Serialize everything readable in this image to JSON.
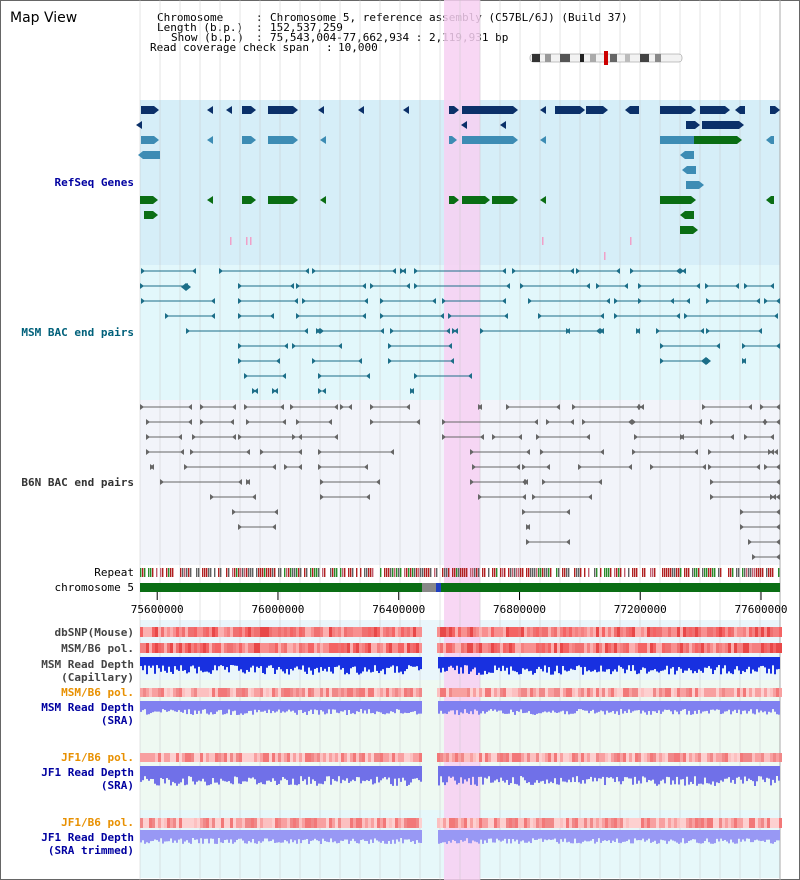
{
  "title": "Map View",
  "info": {
    "chromosome_key": "Chromosome",
    "chromosome_value": "Chromosome 5, reference assembly (C57BL/6J) (Build 37)",
    "length_key": "Length (b.p.)",
    "length_value": "152,537,259",
    "show_key": "Show (b.p.)",
    "show_value": "75,543,004-77,662,934 : 2,119,931 bp",
    "span_key": "Read coverage check span",
    "span_value": "10,000"
  },
  "tracks": {
    "refseq": "RefSeq Genes",
    "msm_bac": "MSM BAC end pairs",
    "b6n_bac": "B6N BAC end pairs",
    "repeat": "Repeat",
    "chromosome": "chromosome 5",
    "dbsnp": "dbSNP(Mouse)",
    "msm_b6_pol_1": "MSM/B6 pol.",
    "msm_depth_cap_1": "MSM Read Depth",
    "msm_depth_cap_2": "(Capillary)",
    "msm_b6_pol_2": "MSM/B6 pol.",
    "msm_depth_sra_1": "MSM Read Depth",
    "msm_depth_sra_2": "(SRA)",
    "jf1_b6_pol_1": "JF1/B6 pol.",
    "jf1_depth_sra_1": "JF1 Read Depth",
    "jf1_depth_sra_2": "(SRA)",
    "jf1_b6_pol_2": "JF1/B6 pol.",
    "jf1_depth_trim_1": "JF1 Read Depth",
    "jf1_depth_trim_2": "(SRA trimmed)"
  },
  "axis": {
    "ticks": [
      "75600000",
      "76000000",
      "76400000",
      "76800000",
      "77200000",
      "77600000"
    ],
    "tick_values": [
      75600000,
      76000000,
      76400000,
      76800000,
      77200000,
      77600000
    ],
    "start": 75543004,
    "end": 77662934
  },
  "highlight": {
    "start": 76550000,
    "end": 76670000
  },
  "colors": {
    "refseq_bg": "#d6eef8",
    "msm_bg": "#e2f7fb",
    "b6n_bg": "#f2f4fa",
    "lower_bg": "#eef9f2",
    "highlight": "#f7d0f2",
    "gene_dark": "#0b3069",
    "gene_mid": "#3d8cb4",
    "gene_green": "#0a6e14",
    "msm_line": "#1c6e88",
    "b6n_line": "#666666",
    "chrom_bar": "#0a6e14",
    "label_blue": "#0000a0",
    "label_orange": "#e89000",
    "label_gray": "#333333",
    "label_teal": "#00607a"
  }
}
